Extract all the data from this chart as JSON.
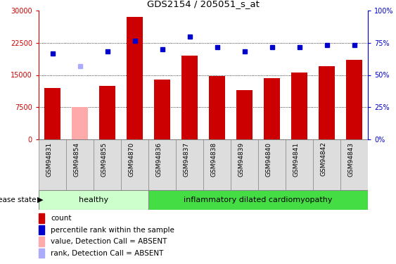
{
  "title": "GDS2154 / 205051_s_at",
  "samples": [
    "GSM94831",
    "GSM94854",
    "GSM94855",
    "GSM94870",
    "GSM94836",
    "GSM94837",
    "GSM94838",
    "GSM94839",
    "GSM94840",
    "GSM94841",
    "GSM94842",
    "GSM94843"
  ],
  "bar_values": [
    12000,
    7500,
    12500,
    28500,
    14000,
    19500,
    14800,
    11500,
    14200,
    15500,
    17000,
    18500
  ],
  "bar_colors": [
    "#cc0000",
    "#ffaaaa",
    "#cc0000",
    "#cc0000",
    "#cc0000",
    "#cc0000",
    "#cc0000",
    "#cc0000",
    "#cc0000",
    "#cc0000",
    "#cc0000",
    "#cc0000"
  ],
  "dot_values": [
    20000,
    17000,
    20500,
    23000,
    21000,
    24000,
    21500,
    20500,
    21500,
    21500,
    22000,
    22000
  ],
  "dot_colors": [
    "#0000cc",
    "#aaaaff",
    "#0000cc",
    "#0000cc",
    "#0000cc",
    "#0000cc",
    "#0000cc",
    "#0000cc",
    "#0000cc",
    "#0000cc",
    "#0000cc",
    "#0000cc"
  ],
  "ylim_left": [
    0,
    30000
  ],
  "ylim_right": [
    0,
    100
  ],
  "yticks_left": [
    0,
    7500,
    15000,
    22500,
    30000
  ],
  "ytick_labels_left": [
    "0",
    "7500",
    "15000",
    "22500",
    "30000"
  ],
  "yticks_right": [
    0,
    25,
    50,
    75,
    100
  ],
  "ytick_labels_right": [
    "0%",
    "25%",
    "50%",
    "75%",
    "100%"
  ],
  "n_healthy": 4,
  "n_idc": 8,
  "healthy_label": "healthy",
  "idc_label": "inflammatory dilated cardiomyopathy",
  "disease_state_label": "disease state",
  "healthy_color": "#ccffcc",
  "idc_color": "#44dd44",
  "bar_color_normal": "#cc0000",
  "bar_color_absent": "#ffaaaa",
  "dot_color_normal": "#0000cc",
  "dot_color_absent": "#aaaaff",
  "legend_items": [
    {
      "label": "count",
      "color": "#cc0000"
    },
    {
      "label": "percentile rank within the sample",
      "color": "#0000cc"
    },
    {
      "label": "value, Detection Call = ABSENT",
      "color": "#ffaaaa"
    },
    {
      "label": "rank, Detection Call = ABSENT",
      "color": "#aaaaff"
    }
  ],
  "tick_label_color_left": "#cc0000",
  "tick_label_color_right": "#0000cc",
  "bg_color": "#ffffff",
  "plot_bg_color": "#ffffff",
  "xtick_bg_color": "#dddddd",
  "xtick_border_color": "#888888"
}
